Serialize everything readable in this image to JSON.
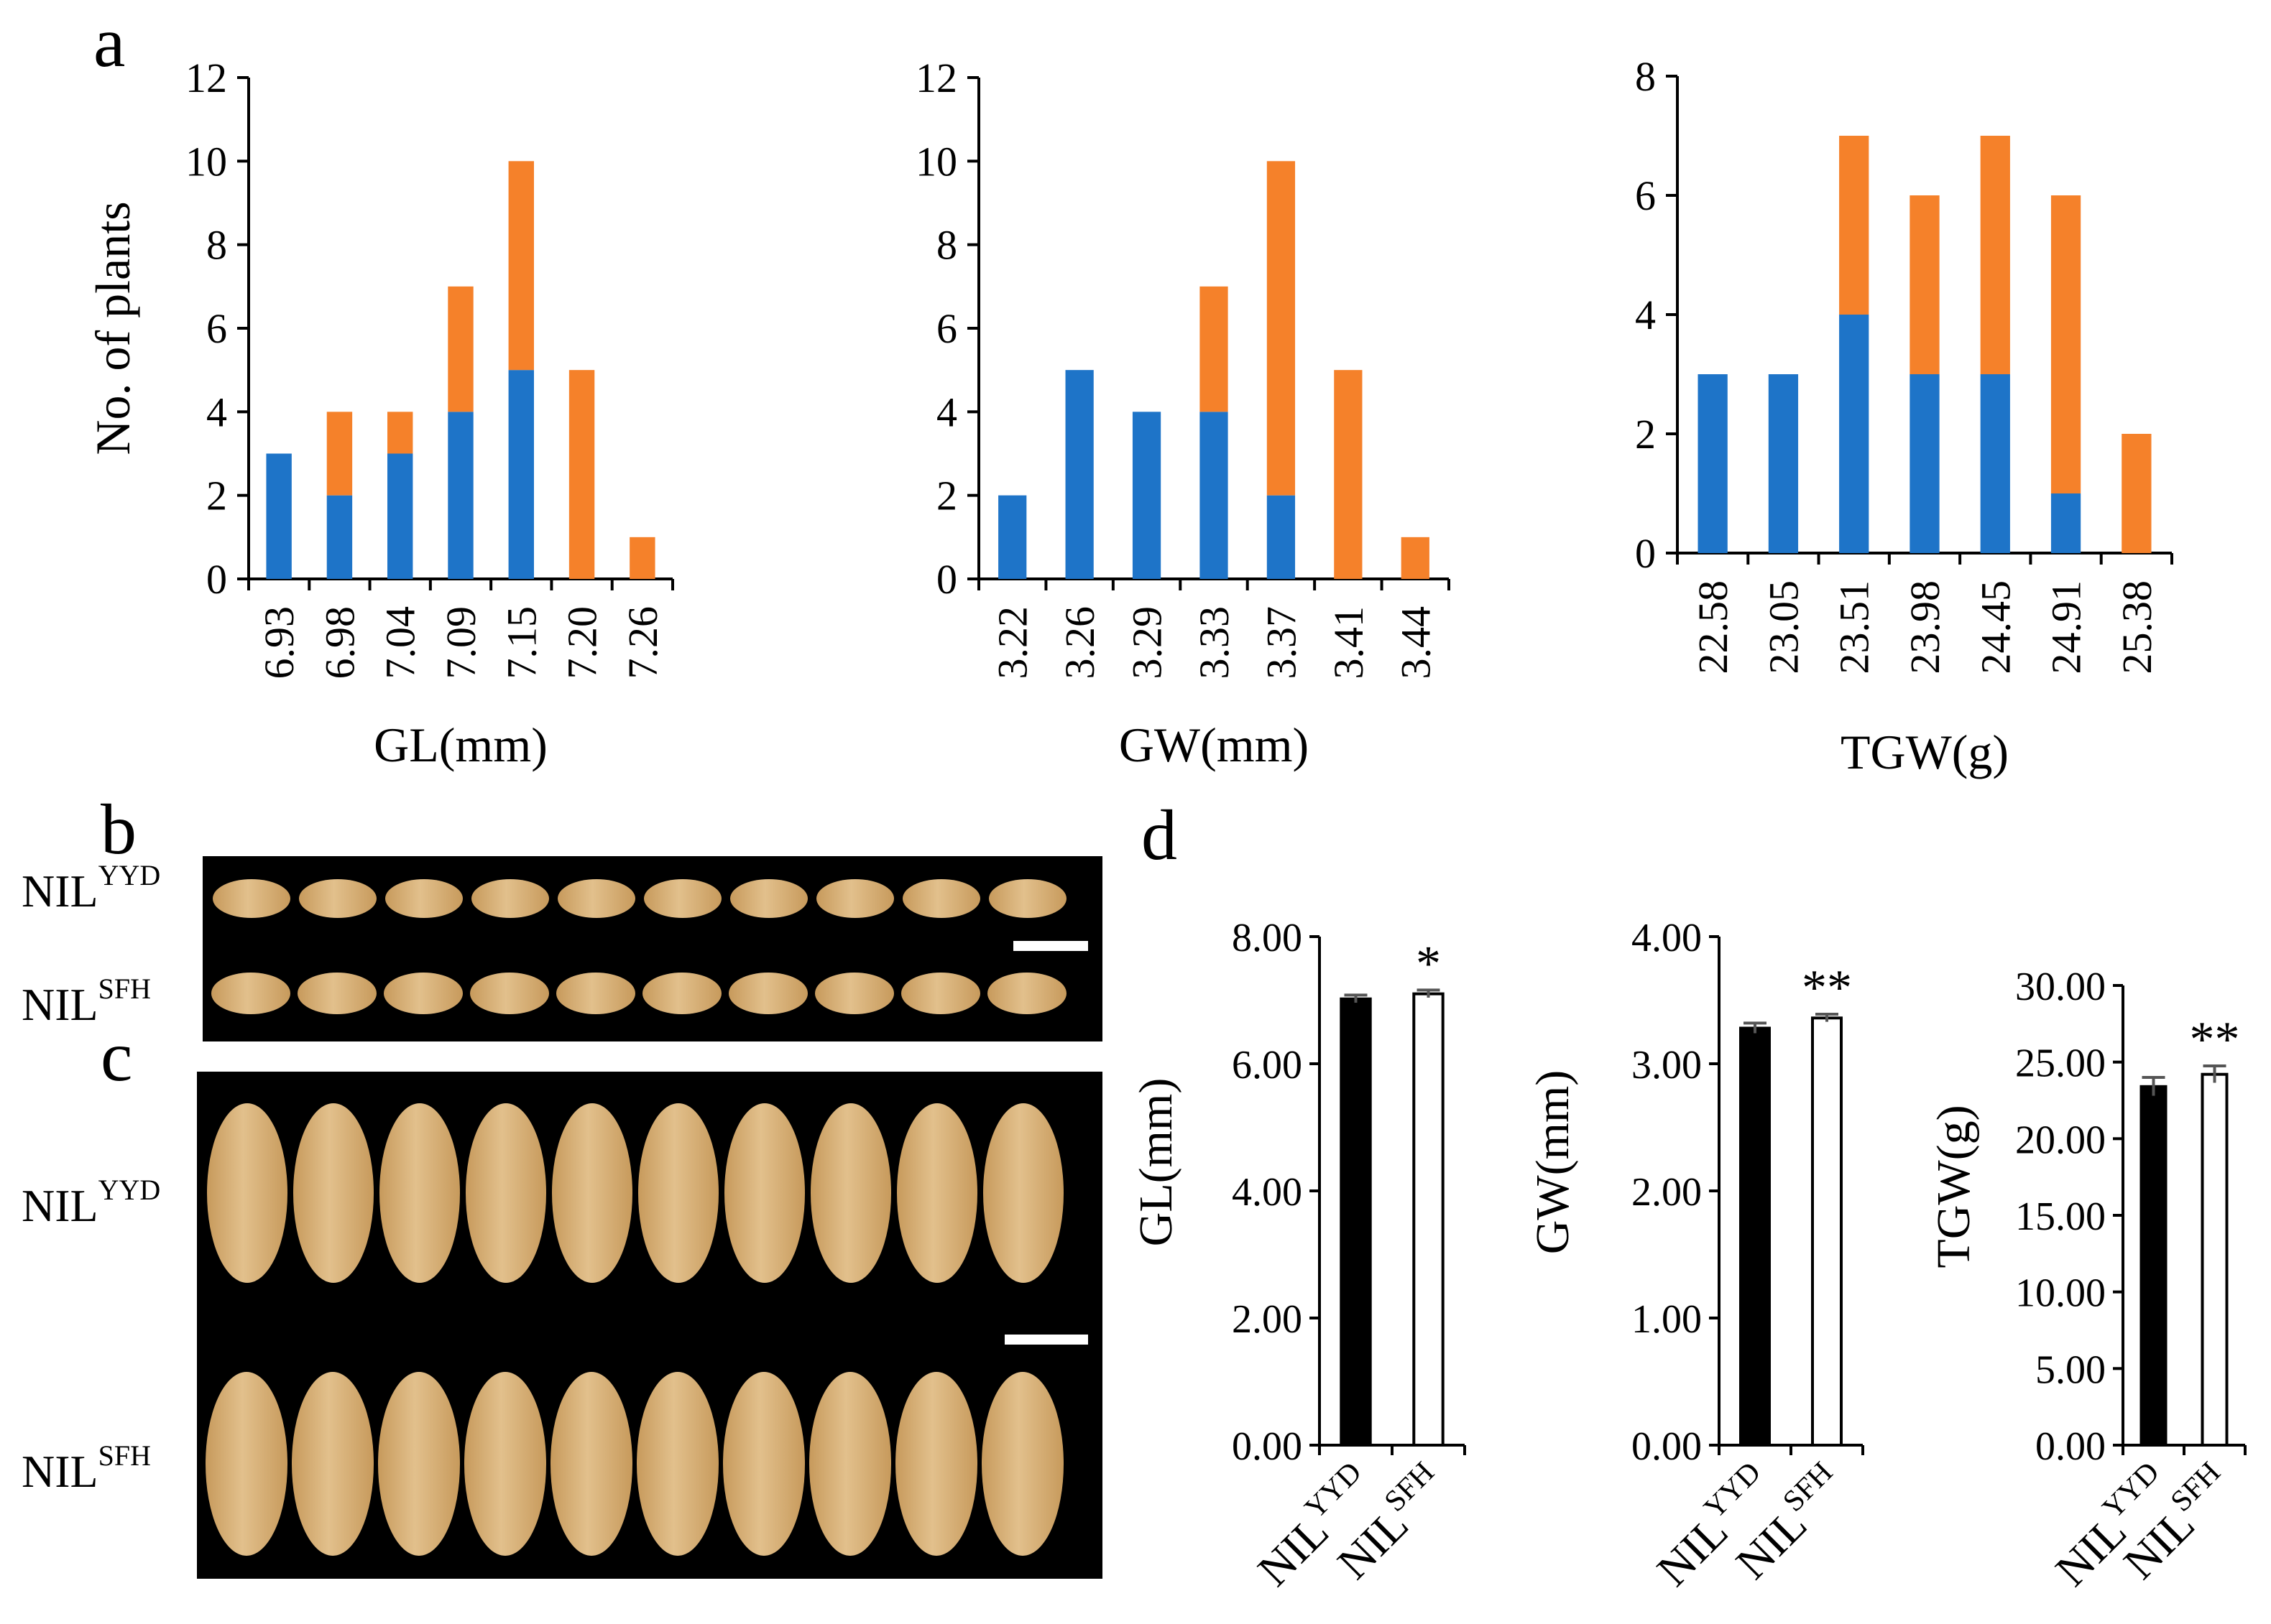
{
  "panel_labels": {
    "a": "a",
    "b": "b",
    "c": "c",
    "d": "d"
  },
  "photo_labels": {
    "yyd_base": "NIL",
    "yyd_sup": "YYD",
    "sfh_base": "NIL",
    "sfh_sup": "SFH"
  },
  "colors": {
    "blue": "#1e74c8",
    "orange": "#f5812a",
    "black": "#000000",
    "white": "#ffffff",
    "grain": "#e2c08c",
    "grain_dark": "#c79a5c"
  },
  "chart_data": [
    {
      "type": "bar",
      "stacked": true,
      "panel": "a",
      "categories": [
        "6.93",
        "6.98",
        "7.04",
        "7.09",
        "7.15",
        "7.20",
        "7.26"
      ],
      "series": [
        {
          "name": "blue",
          "values": [
            3,
            2,
            3,
            4,
            5,
            0,
            0
          ]
        },
        {
          "name": "orange",
          "values": [
            0,
            2,
            1,
            3,
            5,
            5,
            1
          ]
        }
      ],
      "xlabel": "GL(mm)",
      "ylabel": "No. of plants",
      "ylim": [
        0,
        12
      ],
      "yticks": [
        "0",
        "2",
        "4",
        "6",
        "8",
        "10",
        "12"
      ]
    },
    {
      "type": "bar",
      "stacked": true,
      "panel": "a",
      "categories": [
        "3.22",
        "3.26",
        "3.29",
        "3.33",
        "3.37",
        "3.41",
        "3.44"
      ],
      "series": [
        {
          "name": "blue",
          "values": [
            2,
            5,
            4,
            4,
            2,
            0,
            0
          ]
        },
        {
          "name": "orange",
          "values": [
            0,
            0,
            0,
            3,
            8,
            5,
            1
          ]
        }
      ],
      "xlabel": "GW(mm)",
      "ylabel": "",
      "ylim": [
        0,
        12
      ],
      "yticks": [
        "0",
        "2",
        "4",
        "6",
        "8",
        "10",
        "12"
      ]
    },
    {
      "type": "bar",
      "stacked": true,
      "panel": "a",
      "categories": [
        "22.58",
        "23.05",
        "23.51",
        "23.98",
        "24.45",
        "24.91",
        "25.38"
      ],
      "series": [
        {
          "name": "blue",
          "values": [
            3,
            3,
            4,
            3,
            3,
            1,
            0
          ]
        },
        {
          "name": "orange",
          "values": [
            0,
            0,
            3,
            3,
            4,
            5,
            2
          ]
        }
      ],
      "xlabel": "TGW(g)",
      "ylabel": "",
      "ylim": [
        0,
        8
      ],
      "yticks": [
        "0",
        "2",
        "4",
        "6",
        "8"
      ]
    },
    {
      "type": "bar",
      "panel": "d",
      "categories": [
        {
          "base": "NIL",
          "sup": "YYD"
        },
        {
          "base": "NIL",
          "sup": "SFH"
        }
      ],
      "values": [
        7.02,
        7.1
      ],
      "errors": [
        0.06,
        0.06
      ],
      "significance": [
        "",
        "*"
      ],
      "ylabel": "GL(mm)",
      "ylim": [
        0,
        8
      ],
      "yticks": [
        "0.00",
        "2.00",
        "4.00",
        "6.00",
        "8.00"
      ]
    },
    {
      "type": "bar",
      "panel": "d",
      "categories": [
        {
          "base": "NIL",
          "sup": "YYD"
        },
        {
          "base": "NIL",
          "sup": "SFH"
        }
      ],
      "values": [
        3.28,
        3.36
      ],
      "errors": [
        0.04,
        0.03
      ],
      "significance": [
        "",
        "**"
      ],
      "ylabel": "GW(mm)",
      "ylim": [
        0,
        4
      ],
      "yticks": [
        "0.00",
        "1.00",
        "2.00",
        "3.00",
        "4.00"
      ]
    },
    {
      "type": "bar",
      "panel": "d",
      "categories": [
        {
          "base": "NIL",
          "sup": "YYD"
        },
        {
          "base": "NIL",
          "sup": "SFH"
        }
      ],
      "values": [
        23.4,
        24.2
      ],
      "errors": [
        0.6,
        0.55
      ],
      "significance": [
        "",
        "**"
      ],
      "ylabel": "TGW(g)",
      "ylim": [
        0,
        30
      ],
      "yticks": [
        "0.00",
        "5.00",
        "10.00",
        "15.00",
        "20.00",
        "25.00",
        "30.00"
      ]
    }
  ]
}
